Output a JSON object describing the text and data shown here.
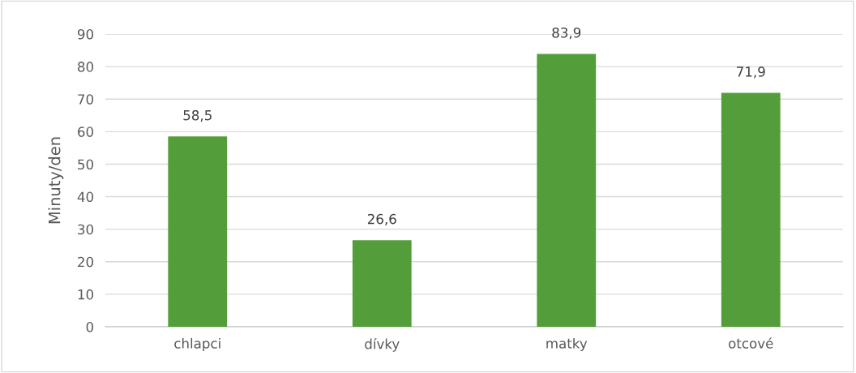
{
  "chart_data": {
    "type": "bar",
    "ylabel": "Minuty/den",
    "categories": [
      "chlapci",
      "dívky",
      "matky",
      "otcové"
    ],
    "values": [
      58.5,
      26.6,
      83.9,
      71.9
    ],
    "value_labels": [
      "58,5",
      "26,6",
      "83,9",
      "71,9"
    ],
    "color": "#539e3a",
    "ylim": [
      0,
      90
    ],
    "yticks": [
      0,
      10,
      20,
      30,
      40,
      50,
      60,
      70,
      80,
      90
    ],
    "grid": "y"
  }
}
